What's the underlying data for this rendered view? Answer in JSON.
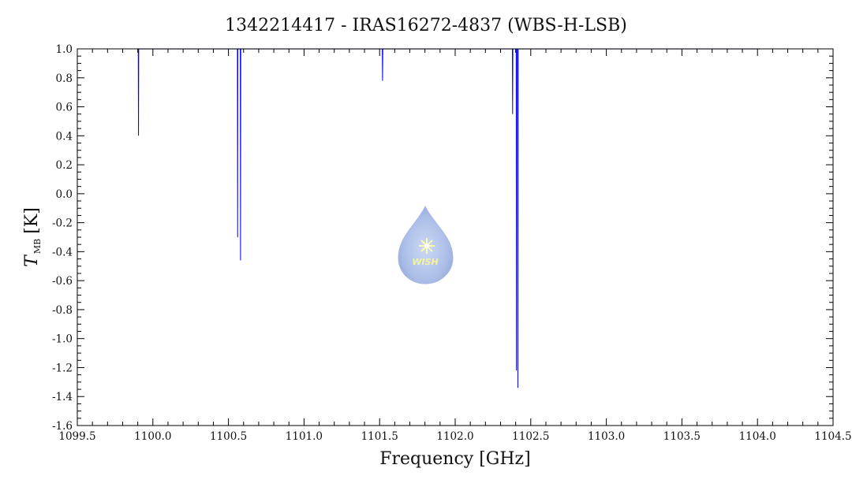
{
  "chart_data": {
    "type": "line",
    "title": "1342214417 - IRAS16272-4837 (WBS-H-LSB)",
    "xlabel": "Frequency [GHz]",
    "ylabel": {
      "main": "T",
      "sub": "MB",
      "unit": "[K]"
    },
    "xlim": [
      1099.5,
      1104.5
    ],
    "ylim": [
      -1.6,
      1.0
    ],
    "xticks": [
      1099.5,
      1100.0,
      1100.5,
      1101.0,
      1101.5,
      1102.0,
      1102.5,
      1103.0,
      1103.5,
      1104.0,
      1104.5
    ],
    "xtick_labels": [
      "1099.5",
      "1100.0",
      "1100.5",
      "1101.0",
      "1101.5",
      "1102.0",
      "1102.5",
      "1103.0",
      "1103.5",
      "1104.0",
      "1104.5"
    ],
    "yticks": [
      -1.6,
      -1.4,
      -1.2,
      -1.0,
      -0.8,
      -0.6,
      -0.4,
      -0.2,
      0.0,
      0.2,
      0.4,
      0.6,
      0.8,
      1.0
    ],
    "ytick_labels": [
      "-1.6",
      "-1.4",
      "-1.2",
      "-1.0",
      "-0.8",
      "-0.6",
      "-0.4",
      "-0.2",
      "0.0",
      "0.2",
      "0.4",
      "0.6",
      "0.8",
      "1.0"
    ],
    "grid": false,
    "series": [
      {
        "color": "#0000ff",
        "x_range": [
          1099.9,
          1104.02
        ],
        "noise_rms": 0.08,
        "features": [
          {
            "x": 1099.905,
            "y": 0.4
          },
          {
            "x": 1100.56,
            "y": -0.3
          },
          {
            "x": 1100.58,
            "y": -0.46
          },
          {
            "x": 1101.52,
            "y": 0.78
          },
          {
            "x": 1102.38,
            "y": 0.55
          },
          {
            "x": 1102.405,
            "y": -1.22
          },
          {
            "x": 1102.415,
            "y": -1.34
          }
        ]
      }
    ]
  },
  "logo": {
    "text": "WISH"
  }
}
